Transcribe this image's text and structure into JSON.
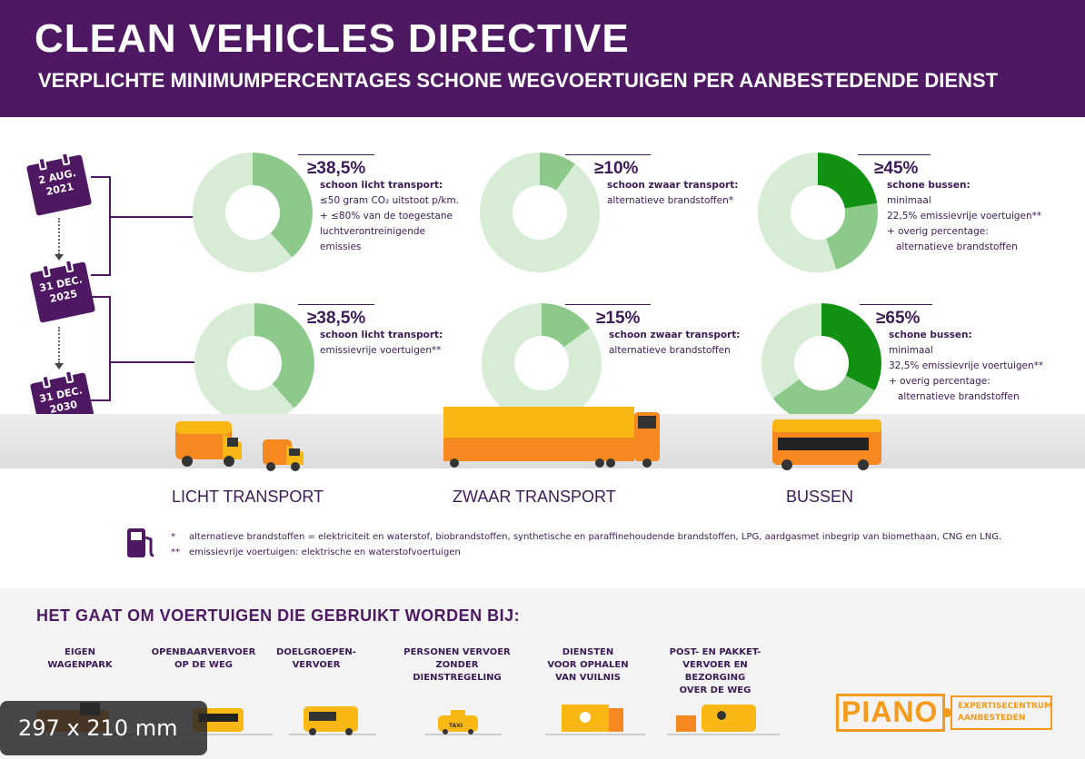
{
  "header": {
    "title": "CLEAN VEHICLES DIRECTIVE",
    "subtitle": "VERPLICHTE MINIMUMPERCENTAGES SCHONE WEGVOERTUIGEN PER AANBESTEDENDE DIENST"
  },
  "timeline": {
    "date1": "2 AUG.\n2021",
    "date2": "31 DEC.\n2025",
    "date3": "31 DEC.\n2030"
  },
  "period1": {
    "light": {
      "pct": "≥38,5%",
      "share": 0.385,
      "heading": "schoon licht transport:",
      "lines": [
        "≤50 gram CO₂ uitstoot p/km.",
        "+ ≤80% van de toegestane",
        "luchtverontreinigende",
        "emissies"
      ]
    },
    "heavy": {
      "pct": "≥10%",
      "share": 0.1,
      "heading": "schoon zwaar transport:",
      "lines": [
        "alternatieve brandstoffen*"
      ]
    },
    "bus": {
      "pct": "≥45%",
      "share_dark": 0.225,
      "share_light": 0.225,
      "heading": "schone bussen:",
      "lines": [
        "minimaal",
        "22,5% emissievrije voertuigen**",
        "+ overig percentage:",
        "alternatieve brandstoffen"
      ]
    }
  },
  "period2": {
    "light": {
      "pct": "≥38,5%",
      "share": 0.385,
      "heading": "schoon licht transport:",
      "lines": [
        "emissievrije voertuigen**"
      ]
    },
    "heavy": {
      "pct": "≥15%",
      "share": 0.15,
      "heading": "schoon zwaar transport:",
      "lines": [
        "alternatieve brandstoffen"
      ]
    },
    "bus": {
      "pct": "≥65%",
      "share_dark": 0.325,
      "share_light": 0.325,
      "heading": "schone bussen:",
      "lines": [
        "minimaal",
        "32,5% emissievrije voertuigen**",
        "+ overig percentage:",
        "alternatieve brandstoffen"
      ]
    }
  },
  "categories": {
    "light": "LICHT TRANSPORT",
    "heavy": "ZWAAR TRANSPORT",
    "bus": "BUSSEN"
  },
  "notes": {
    "n1_mark": "*",
    "n1": "alternatieve brandstoffen = elektriciteit en waterstof, biobrandstoffen, synthetische en paraffinehoudende brandstoffen, LPG, aardgasmet inbegrip van biomethaan, CNG en LNG.",
    "n2_mark": "**",
    "n2": "emissievrije voertuigen: elektrische en waterstofvoertuigen"
  },
  "bottom": {
    "title": "HET GAAT OM VOERTUIGEN DIE GEBRUIKT WORDEN BIJ:",
    "uses": [
      "EIGEN\nWAGENPARK",
      "OPENBAARVERVOER\nOP DE WEG",
      "DOELGROEPEN-\nVERVOER",
      "PERSONEN VERVOER\nZONDER\nDIENSTREGELING",
      "DIENSTEN\nVOOR OPHALEN\nVAN VUILNIS",
      "POST- EN PAKKET-\nVERVOER EN BEZORGING\nOVER DE WEG"
    ],
    "taxi_label": "TAXI"
  },
  "logo": {
    "name": "PIANO",
    "line1": "EXPERTISECENTRUM",
    "line2": "AANBESTEDEN"
  },
  "badge": "297 x 210 mm",
  "colors": {
    "purple": "#4e1863",
    "green_dark": "#119111",
    "green_mid": "#8cc98a",
    "green_light": "#d6ecd4",
    "orange": "#f5891f",
    "yellow": "#f8b712"
  }
}
